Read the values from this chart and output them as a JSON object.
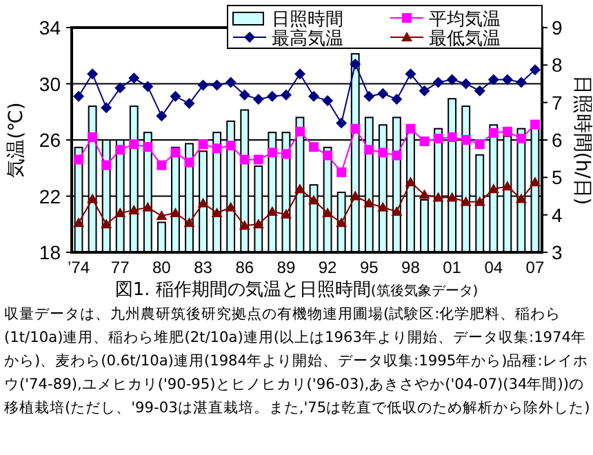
{
  "chart_data": {
    "type": "line",
    "title": "図1.  稲作期間の気温と日照時間",
    "subtitle": "(筑後気象データ)",
    "ylabel": "気温(℃)",
    "y2label": "日照時間(h/日)",
    "x": [
      1974,
      1975,
      1976,
      1977,
      1978,
      1979,
      1980,
      1981,
      1982,
      1983,
      1984,
      1985,
      1986,
      1987,
      1988,
      1989,
      1990,
      1991,
      1992,
      1993,
      1994,
      1995,
      1996,
      1997,
      1998,
      1999,
      2000,
      2001,
      2002,
      2003,
      2004,
      2005,
      2006,
      2007
    ],
    "xlim": [
      1973.5,
      2007.5
    ],
    "xticks": [
      {
        "value": 1974,
        "label": "’74"
      },
      {
        "value": 1977,
        "label": "77"
      },
      {
        "value": 1980,
        "label": "80"
      },
      {
        "value": 1983,
        "label": "83"
      },
      {
        "value": 1986,
        "label": "86"
      },
      {
        "value": 1989,
        "label": "89"
      },
      {
        "value": 1992,
        "label": "92"
      },
      {
        "value": 1995,
        "label": "95"
      },
      {
        "value": 1998,
        "label": "98"
      },
      {
        "value": 2001,
        "label": "01"
      },
      {
        "value": 2004,
        "label": "04"
      },
      {
        "value": 2007,
        "label": "07"
      }
    ],
    "ylim": [
      18,
      34
    ],
    "yticks": [
      18,
      22,
      26,
      30,
      34
    ],
    "y2lim": [
      3,
      9
    ],
    "y2ticks": [
      3,
      4,
      5,
      6,
      7,
      8,
      9
    ],
    "grid": "y",
    "legend": "top right",
    "series": [
      {
        "name": "日照時間",
        "type": "bar",
        "axis": "y2",
        "color": "#ccffff",
        "values": [
          5.8,
          6.9,
          6.0,
          6.0,
          6.9,
          6.2,
          3.8,
          5.8,
          5.9,
          5.7,
          6.2,
          6.5,
          6.8,
          5.3,
          6.2,
          6.2,
          6.6,
          4.8,
          5.8,
          4.6,
          8.3,
          6.6,
          6.4,
          6.6,
          6.2,
          4.4,
          6.3,
          7.1,
          6.9,
          5.6,
          6.4,
          6.1,
          6.3,
          6.4
        ]
      },
      {
        "name": "平均気温",
        "marker": "square",
        "color": "#ff00ff",
        "values": [
          24.6,
          26.2,
          24.2,
          25.3,
          25.7,
          25.5,
          24.2,
          25.1,
          24.4,
          25.7,
          25.4,
          25.6,
          24.6,
          24.6,
          25.1,
          25.0,
          26.6,
          25.5,
          24.9,
          23.7,
          26.8,
          25.3,
          25.1,
          24.9,
          26.8,
          25.9,
          26.1,
          26.2,
          26.0,
          25.7,
          26.5,
          26.6,
          26.1,
          27.1
        ]
      },
      {
        "name": "最高気温",
        "marker": "diamond",
        "color": "#000080",
        "values": [
          29.1,
          30.7,
          28.3,
          29.7,
          30.4,
          29.8,
          27.7,
          29.1,
          28.6,
          29.9,
          29.9,
          30.1,
          29.2,
          28.9,
          29.1,
          29.2,
          30.7,
          29.1,
          28.8,
          27.2,
          31.4,
          29.1,
          29.3,
          28.9,
          30.7,
          29.5,
          30.1,
          30.3,
          30.0,
          29.5,
          30.3,
          30.3,
          30.1,
          31.0
        ]
      },
      {
        "name": "最低気温",
        "marker": "triangle",
        "color": "#800000",
        "values": [
          20.1,
          21.8,
          20.0,
          20.8,
          21.0,
          21.2,
          20.6,
          20.8,
          20.1,
          21.5,
          20.8,
          21.2,
          19.9,
          20.0,
          20.9,
          20.7,
          22.5,
          21.7,
          20.8,
          20.1,
          22.0,
          21.5,
          21.2,
          20.9,
          23.0,
          22.1,
          21.9,
          21.9,
          21.6,
          21.6,
          22.5,
          22.7,
          21.8,
          23.0
        ]
      }
    ],
    "annotations": [
      "収量データは、九州農研筑後研究拠点の有機物連用圃場(試験区:化学肥料、稲わら(1t/10a)連用、稲わら堆肥(2t/10a)連用(以上は1963年より開始、データ収集:1974年から)、麦わら(0.6t/10a)連用(1984年より開始、データ収集:1995年から)品種:レイホウ('74-89),ユメヒカリ('90-95)とヒノヒカリ('96-03),あきさやか('04-07)(34年間))の移植栽培(ただし、'99-03は湛直栽培。また,'75は乾直で低収のため解析から除外した)"
    ]
  }
}
